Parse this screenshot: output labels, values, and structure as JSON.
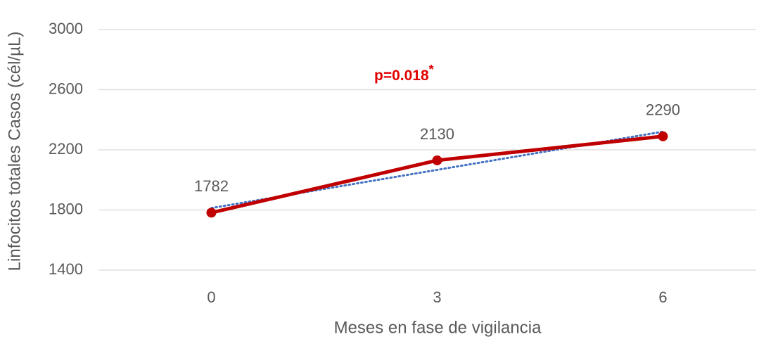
{
  "chart_data": {
    "type": "line",
    "x_label": "Meses en fase de vigilancia",
    "y_label": "Linfocitos totales Casos (cél/µL)",
    "categories": [
      "0",
      "3",
      "6"
    ],
    "series": [
      {
        "color": "#c00000",
        "values": [
          1782,
          2130,
          2290
        ]
      }
    ],
    "trendline": {
      "color": "#4472c4",
      "values": [
        1813,
        2067,
        2321
      ]
    },
    "ylim": [
      1400,
      3000
    ],
    "yticks": [
      1400,
      1800,
      2200,
      2600,
      3000
    ],
    "grid": true,
    "annotation": {
      "text": "p=0.018",
      "superscript": "*",
      "color": "#e00000"
    }
  }
}
